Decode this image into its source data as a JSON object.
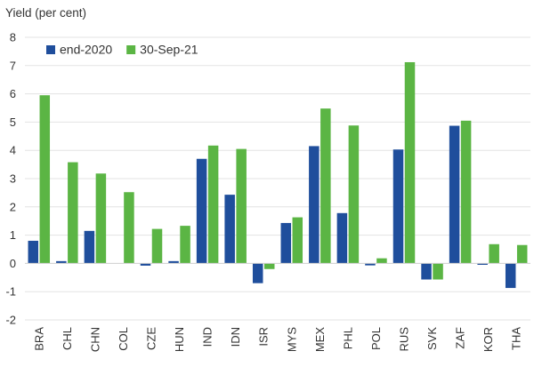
{
  "chart_data": {
    "type": "bar",
    "title": "",
    "ylabel": "Yield (per cent)",
    "xlabel": "",
    "ylim": [
      -2,
      8
    ],
    "yticks": [
      -2,
      -1,
      0,
      1,
      2,
      3,
      4,
      5,
      6,
      7,
      8
    ],
    "grid": true,
    "legend_position": "top-left",
    "categories": [
      "BRA",
      "CHL",
      "CHN",
      "COL",
      "CZE",
      "HUN",
      "IND",
      "IDN",
      "ISR",
      "MYS",
      "MEX",
      "PHL",
      "POL",
      "RUS",
      "SVK",
      "ZAF",
      "KOR",
      "THA"
    ],
    "series": [
      {
        "name": "end-2020",
        "color": "#1f4e9c",
        "values": [
          0.8,
          0.08,
          1.15,
          0.0,
          -0.08,
          0.08,
          3.7,
          2.43,
          -0.7,
          1.43,
          4.15,
          1.78,
          -0.07,
          4.03,
          -0.57,
          4.87,
          -0.05,
          -0.87
        ]
      },
      {
        "name": "30-Sep-21",
        "color": "#5bb544",
        "values": [
          5.95,
          3.58,
          3.18,
          2.52,
          1.22,
          1.33,
          4.17,
          4.05,
          -0.2,
          1.63,
          5.48,
          4.88,
          0.18,
          7.12,
          -0.57,
          5.05,
          0.68,
          0.65
        ]
      }
    ]
  }
}
